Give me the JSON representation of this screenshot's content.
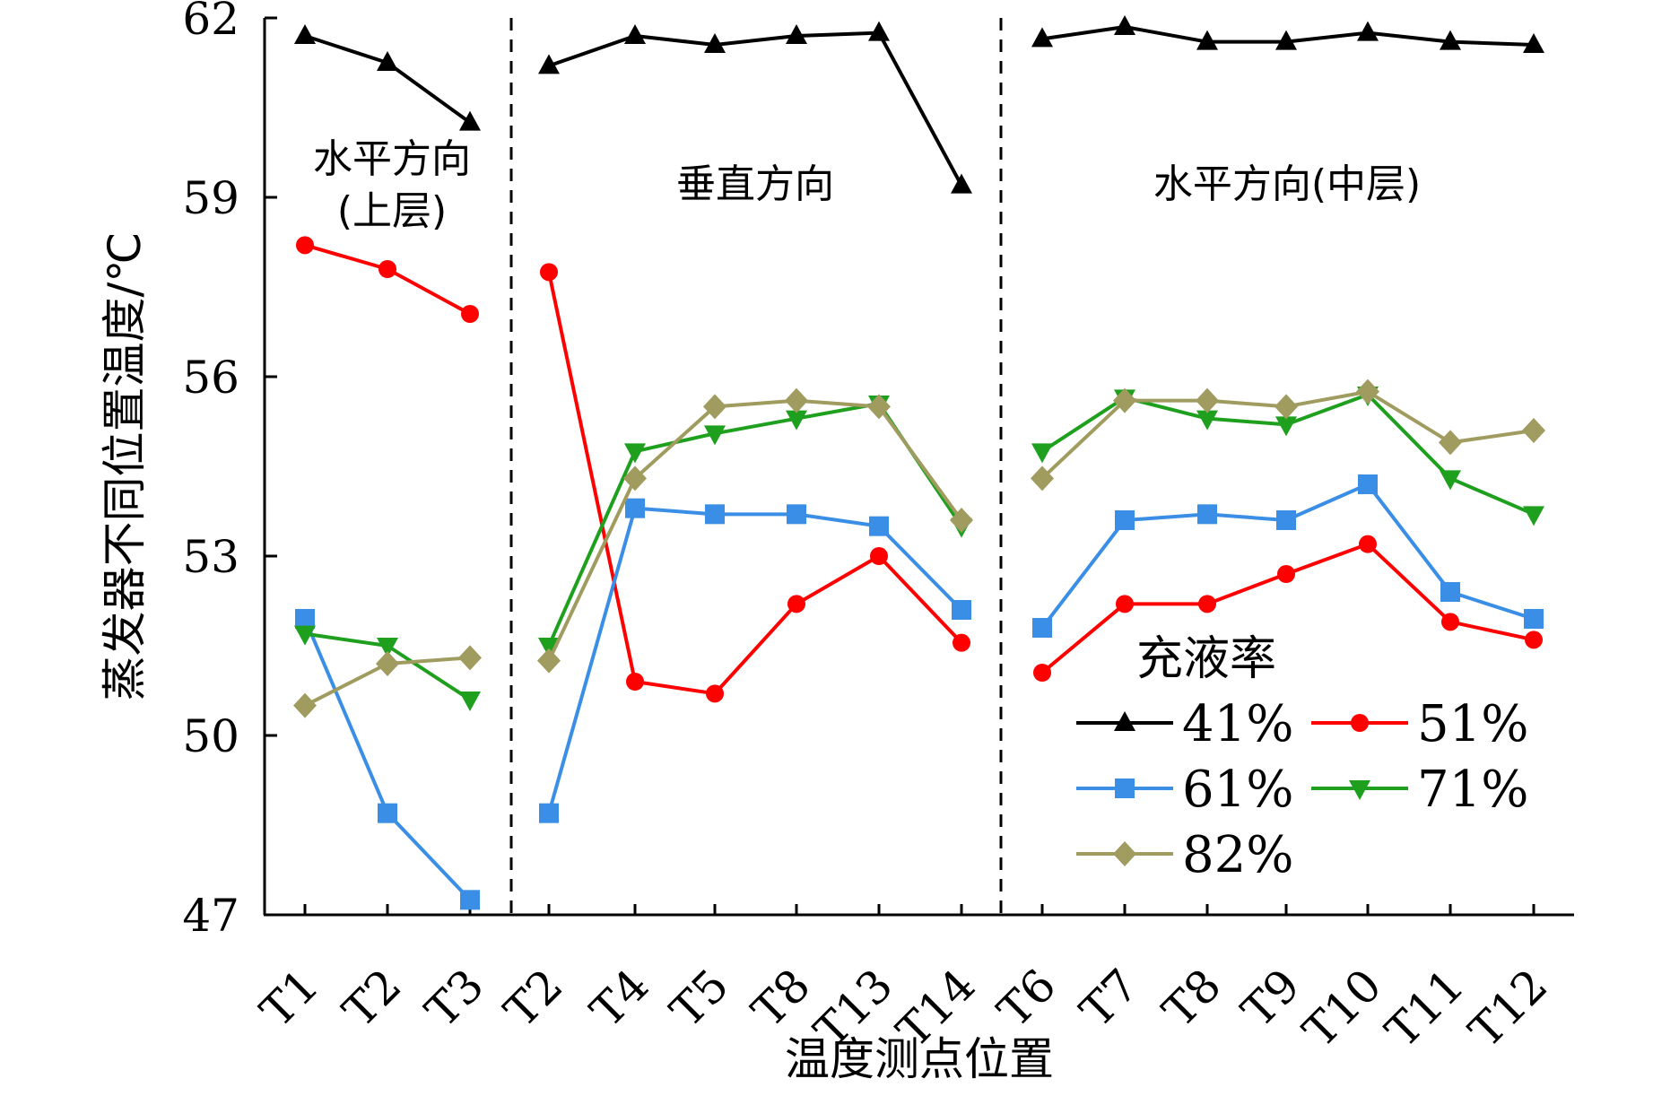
{
  "chart_data": {
    "type": "line",
    "xlabel": "温度测点位置",
    "ylabel": "蒸发器不同位置温度/℃",
    "ylim": [
      47,
      62
    ],
    "yticks": [
      47,
      50,
      53,
      56,
      59,
      62
    ],
    "categories": [
      "T1",
      "T2",
      "T3",
      "T2",
      "T4",
      "T5",
      "T8",
      "T13",
      "T14",
      "T6",
      "T7",
      "T8",
      "T9",
      "T10",
      "T11",
      "T12"
    ],
    "groups": [
      {
        "label": "水平方向(上层)",
        "lines": [
          "水平方向",
          "(上层)"
        ],
        "start": 0,
        "end": 2
      },
      {
        "label": "垂直方向",
        "lines": [
          "垂直方向"
        ],
        "start": 3,
        "end": 8
      },
      {
        "label": "水平方向(中层)",
        "lines": [
          "水平方向(中层)"
        ],
        "start": 9,
        "end": 15
      }
    ],
    "legend_title": "充液率",
    "legend_position": "bottom-right",
    "series": [
      {
        "name": "41%",
        "color": "#000000",
        "marker": "triangle-up",
        "values": [
          61.7,
          61.25,
          60.25,
          61.2,
          61.7,
          61.55,
          61.7,
          61.75,
          59.2,
          61.65,
          61.85,
          61.6,
          61.6,
          61.75,
          61.6,
          61.55
        ]
      },
      {
        "name": "51%",
        "color": "#ff0000",
        "marker": "circle",
        "values": [
          58.2,
          57.8,
          57.05,
          57.75,
          50.9,
          50.7,
          52.2,
          53.0,
          51.55,
          51.05,
          52.2,
          52.2,
          52.7,
          53.2,
          51.9,
          51.6
        ]
      },
      {
        "name": "61%",
        "color": "#3a8ee6",
        "marker": "square",
        "values": [
          51.95,
          48.7,
          47.25,
          48.7,
          53.8,
          53.7,
          53.7,
          53.5,
          52.1,
          51.8,
          53.6,
          53.7,
          53.6,
          54.2,
          52.4,
          51.95
        ]
      },
      {
        "name": "71%",
        "color": "#1ea01e",
        "marker": "triangle-down",
        "values": [
          51.7,
          51.5,
          50.6,
          51.5,
          54.75,
          55.05,
          55.3,
          55.55,
          53.5,
          54.75,
          55.65,
          55.3,
          55.2,
          55.7,
          54.3,
          53.7
        ]
      },
      {
        "name": "82%",
        "color": "#a09b5f",
        "marker": "diamond",
        "values": [
          50.5,
          51.2,
          51.3,
          51.25,
          54.3,
          55.5,
          55.6,
          55.5,
          53.6,
          54.3,
          55.6,
          55.6,
          55.5,
          55.75,
          54.9,
          55.1
        ]
      }
    ]
  }
}
